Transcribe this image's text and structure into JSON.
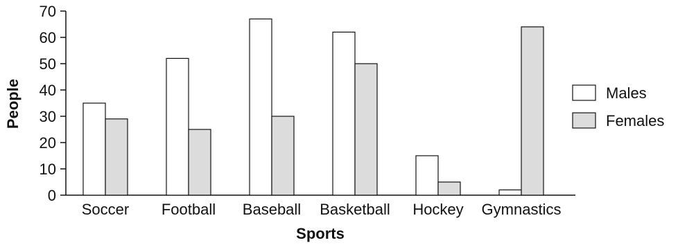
{
  "chart_data": {
    "type": "bar",
    "xlabel": "Sports",
    "ylabel": "People",
    "categories": [
      "Soccer",
      "Football",
      "Baseball",
      "Basketball",
      "Hockey",
      "Gymnastics"
    ],
    "series": [
      {
        "name": "Males",
        "values": [
          35,
          52,
          67,
          62,
          15,
          2
        ],
        "color": "#ffffff"
      },
      {
        "name": "Females",
        "values": [
          29,
          25,
          30,
          50,
          5,
          64
        ],
        "color": "#dcdcdc"
      }
    ],
    "ylim": [
      0,
      70
    ],
    "yticks": [
      0,
      10,
      20,
      30,
      40,
      50,
      60,
      70
    ],
    "grid": false,
    "legend_position": "right"
  }
}
